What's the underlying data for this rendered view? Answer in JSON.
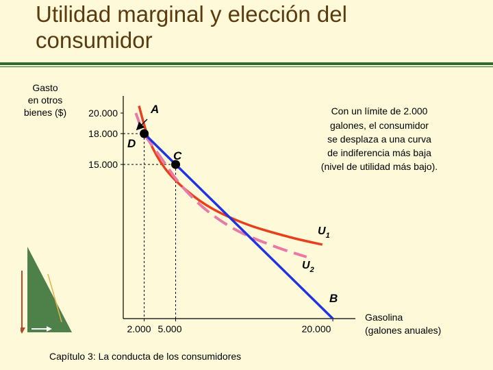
{
  "slide": {
    "title_line1": "Utilidad marginal y elección del",
    "title_line2": "consumidor",
    "footer": "Capítulo 3: La conducta de los consumidores"
  },
  "colors": {
    "U1": "#e8401c",
    "U2": "#e87aa8",
    "budget": "#1f33e0",
    "title": "#5a3a0f",
    "background": "#fdf9d9",
    "rule": "#2f6b2f"
  },
  "chart_data": {
    "type": "line",
    "xlabel_line1": "Gasolina",
    "xlabel_line2": "(galones anuales)",
    "ylabel_line1": "Gasto",
    "ylabel_line2": "en otros",
    "ylabel_line3": "bienes ($)",
    "xlim": [
      0,
      21500
    ],
    "ylim": [
      0,
      21000
    ],
    "x_ticks": [
      {
        "value": 2000,
        "label": "2.000"
      },
      {
        "value": 5000,
        "label": "5.000"
      },
      {
        "value": 20000,
        "label": "20.000"
      }
    ],
    "y_ticks": [
      {
        "value": 20000,
        "label": "20.000"
      },
      {
        "value": 18000,
        "label": "18.000"
      },
      {
        "value": 15000,
        "label": "15.000"
      }
    ],
    "series": [
      {
        "name": "U1",
        "label": "U1",
        "style": "solid",
        "points": [
          [
            1500,
            20700
          ],
          [
            2500,
            17300
          ],
          [
            4000,
            14600
          ],
          [
            6000,
            12500
          ],
          [
            8500,
            10700
          ],
          [
            12000,
            9100
          ],
          [
            16000,
            7900
          ],
          [
            19000,
            7200
          ]
        ]
      },
      {
        "name": "U2",
        "label": "U2",
        "style": "dashed",
        "points": [
          [
            1200,
            20000
          ],
          [
            2000,
            18000
          ],
          [
            3500,
            15800
          ],
          [
            5500,
            13000
          ],
          [
            8000,
            10500
          ],
          [
            11000,
            8500
          ],
          [
            14500,
            7000
          ],
          [
            17500,
            6000
          ]
        ]
      },
      {
        "name": "budget",
        "label": "",
        "style": "solid",
        "points": [
          [
            2000,
            18000
          ],
          [
            5000,
            15000
          ],
          [
            20000,
            0
          ]
        ]
      }
    ],
    "points": [
      {
        "label": "A",
        "x": 3200,
        "y": 19200,
        "marker": false
      },
      {
        "label": "D",
        "x": 2000,
        "y": 18000,
        "marker": true
      },
      {
        "label": "C",
        "x": 5000,
        "y": 15000,
        "marker": true
      },
      {
        "label": "B",
        "x": 20000,
        "y": 0,
        "marker": false
      }
    ],
    "guides": [
      {
        "x": 2000,
        "y": 18000
      },
      {
        "x": 5000,
        "y": 15000
      }
    ],
    "annotation": [
      "Con un límite de 2.000",
      "galones, el consumidor",
      "se desplaza a una curva",
      "de indiferencia más baja",
      "(nivel de utilidad más bajo)."
    ],
    "grid": false,
    "legend": "none"
  }
}
